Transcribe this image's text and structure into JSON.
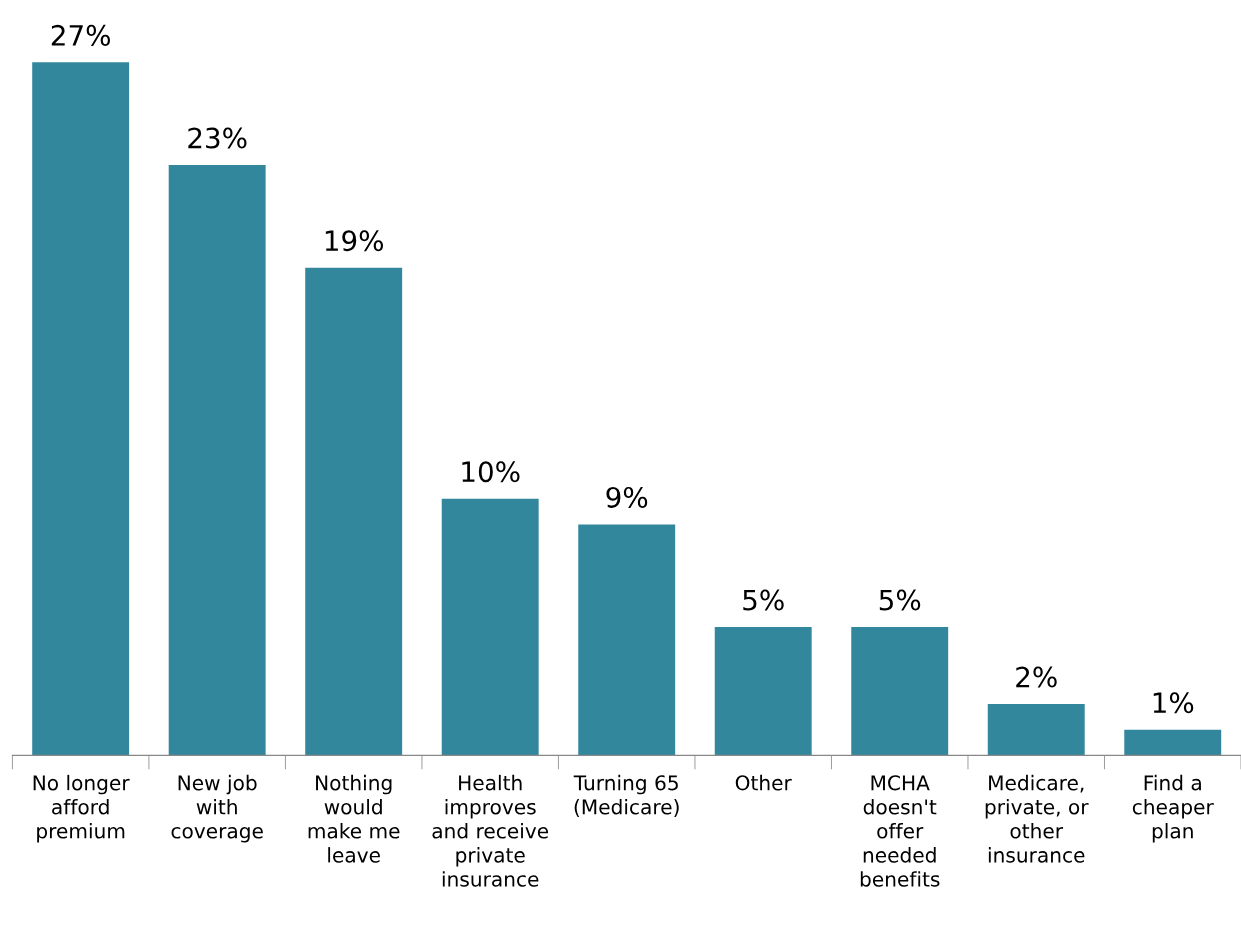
{
  "chart_data": {
    "type": "bar",
    "categories": [
      "No longer\nafford\npremium",
      "New job\nwith\ncoverage",
      "Nothing\nwould\nmake me\nleave",
      "Health\nimproves\nand receive\nprivate\ninsurance",
      "Turning 65\n(Medicare)",
      "Other",
      "MCHA\ndoesn't\noffer\nneeded\nbenefits",
      "Medicare,\nprivate, or\nother\ninsurance",
      "Find a\ncheaper\nplan"
    ],
    "values": [
      27,
      23,
      19,
      10,
      9,
      5,
      5,
      2,
      1
    ],
    "value_labels": [
      "27%",
      "23%",
      "19%",
      "10%",
      "9%",
      "5%",
      "5%",
      "2%",
      "1%"
    ],
    "color": "#33879c",
    "grid": false,
    "legend": false
  }
}
